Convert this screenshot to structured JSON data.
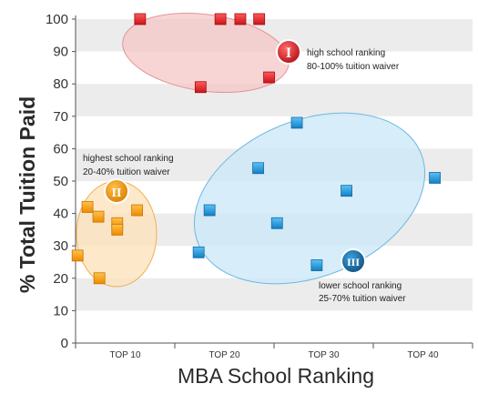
{
  "chart_data": {
    "type": "scatter",
    "xlabel": "MBA School Ranking",
    "ylabel": "% Total Tuition Paid",
    "ylim": [
      0,
      100
    ],
    "ytick_step": 10,
    "xlim": [
      0,
      40
    ],
    "x_categories": [
      "TOP 10",
      "TOP 20",
      "TOP 30",
      "TOP 40"
    ],
    "grid": "horizontal bands",
    "series": [
      {
        "color": "#e8262b",
        "points": [
          {
            "x": 6.5,
            "y": 100
          },
          {
            "x": 14.6,
            "y": 100
          },
          {
            "x": 16.6,
            "y": 100
          },
          {
            "x": 18.5,
            "y": 100
          },
          {
            "x": 12.6,
            "y": 79
          },
          {
            "x": 19.5,
            "y": 82
          }
        ]
      },
      {
        "color": "#f7a31b",
        "points": [
          {
            "x": 0.2,
            "y": 27
          },
          {
            "x": 1.2,
            "y": 42
          },
          {
            "x": 2.3,
            "y": 39
          },
          {
            "x": 2.4,
            "y": 20
          },
          {
            "x": 4.2,
            "y": 37
          },
          {
            "x": 4.2,
            "y": 35
          },
          {
            "x": 6.2,
            "y": 41
          }
        ]
      },
      {
        "color": "#1a9be0",
        "points": [
          {
            "x": 12.4,
            "y": 28
          },
          {
            "x": 13.5,
            "y": 41
          },
          {
            "x": 18.4,
            "y": 54
          },
          {
            "x": 20.3,
            "y": 37
          },
          {
            "x": 22.3,
            "y": 68
          },
          {
            "x": 24.3,
            "y": 24
          },
          {
            "x": 27.3,
            "y": 47
          },
          {
            "x": 36.2,
            "y": 51
          }
        ]
      }
    ],
    "groups": [
      {
        "badge": "I",
        "color": "#e8262b",
        "line1": "high school ranking",
        "line2": "80-100% tuition waiver"
      },
      {
        "badge": "II",
        "color": "#f7a31b",
        "line1": "highest school ranking",
        "line2": "20-40% tuition waiver"
      },
      {
        "badge": "III",
        "color": "#1a6fa8",
        "line1": "lower school ranking",
        "line2": "25-70% tuition waiver"
      }
    ]
  }
}
